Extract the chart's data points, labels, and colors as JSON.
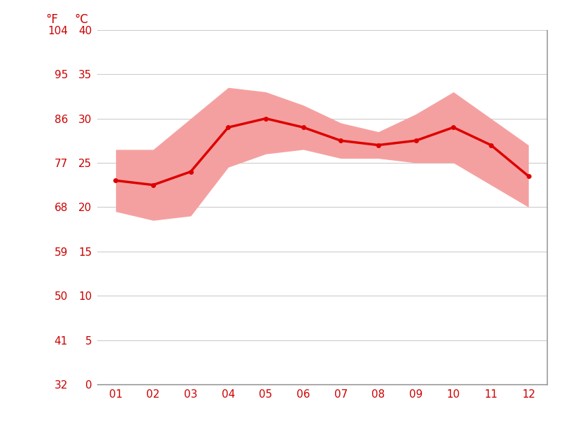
{
  "months": [
    1,
    2,
    3,
    4,
    5,
    6,
    7,
    8,
    9,
    10,
    11,
    12
  ],
  "month_labels": [
    "01",
    "02",
    "03",
    "04",
    "05",
    "06",
    "07",
    "08",
    "09",
    "10",
    "11",
    "12"
  ],
  "avg_temp_c": [
    23.0,
    22.5,
    24.0,
    29.0,
    30.0,
    29.0,
    27.5,
    27.0,
    27.5,
    29.0,
    27.0,
    23.5
  ],
  "max_temp_c": [
    26.5,
    26.5,
    30.0,
    33.5,
    33.0,
    31.5,
    29.5,
    28.5,
    30.5,
    33.0,
    30.0,
    27.0
  ],
  "min_temp_c": [
    19.5,
    18.5,
    19.0,
    24.5,
    26.0,
    26.5,
    25.5,
    25.5,
    25.0,
    25.0,
    22.5,
    20.0
  ],
  "line_color": "#dd0000",
  "fill_color": "#f5a0a0",
  "grid_color": "#cccccc",
  "text_color": "#cc0000",
  "background_color": "#ffffff",
  "ylim_c": [
    0,
    40
  ],
  "yticks_c": [
    0,
    5,
    10,
    15,
    20,
    25,
    30,
    35,
    40
  ],
  "yticks_f": [
    32,
    41,
    50,
    59,
    68,
    77,
    86,
    95,
    104
  ],
  "marker": "o",
  "marker_size": 4,
  "line_width": 2.5,
  "label_fontsize": 11,
  "header_fontsize": 12
}
